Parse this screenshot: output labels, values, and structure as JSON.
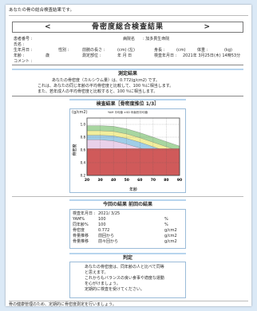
{
  "intro": "あなたの骨の総合検査結果です。",
  "title": "骨密度総合検査結果",
  "title_prev_arrow": "<",
  "title_next_arrow": ">",
  "patient": {
    "id_label": "患者番号 :",
    "name_label": "氏名 :",
    "birth_label": "生年月日 :",
    "age_label": "年齢 :",
    "age_value": "歳",
    "comment_label": "コメント :",
    "facility_label": "病院名",
    "facility_value": ": 加多貫生命院",
    "sex_label": "性別 :",
    "forearm_label": "前腕の長さ :",
    "forearm_unit": "(cm) (左)",
    "height_label": "身長 :",
    "height_unit": "(cm)",
    "weight_label": "体重 :",
    "weight_unit": "(kg)",
    "exam_label": "検査年月日 :",
    "exam_value": "2021年 3月25日(木) 14時53分",
    "meas_label": "測定部位 :",
    "meas_value": "年  月  日"
  },
  "measure": {
    "heading": "測定結果",
    "line1": "あなたの骨密度（カルシウム量）は、0.772(g/cm2) です。",
    "line2": "これは、あなたの同じ年齢の平均骨密度と比較して、100 ％に相当します。",
    "line3": "また、若年成人の平均骨密度と比較すると、100 ％に相当します。"
  },
  "graph": {
    "heading": "検査結果［骨密度推位 1/3］",
    "ylabel": "(g/cm2)",
    "legend": "YAM  平均値  ±SD  年齢別平均値",
    "yaxis_title": "骨密度",
    "xlabel": "年齢",
    "y_ticks": [
      "1.0",
      "0.8",
      "0.6",
      "0.4",
      "0.2"
    ],
    "x_ticks": [
      "20",
      "30",
      "40",
      "50",
      "60",
      "70",
      "80",
      "90"
    ]
  },
  "chart_data": {
    "type": "area",
    "xlim": [
      20,
      90
    ],
    "ylim": [
      0.2,
      1.1
    ],
    "x": [
      20,
      30,
      40,
      50,
      60,
      70,
      80,
      90
    ],
    "bands": [
      {
        "color": "#a8d6a0",
        "values": [
          0.98,
          0.98,
          0.97,
          0.93,
          0.87,
          0.8,
          0.73,
          0.66
        ]
      },
      {
        "color": "#f2ee9c",
        "values": [
          0.9,
          0.9,
          0.89,
          0.85,
          0.79,
          0.72,
          0.65,
          0.58
        ]
      },
      {
        "color": "#9fcde8",
        "values": [
          0.83,
          0.83,
          0.82,
          0.78,
          0.72,
          0.65,
          0.58,
          0.51
        ]
      },
      {
        "color": "#e9d1ea",
        "values": [
          0.76,
          0.76,
          0.74,
          0.69,
          0.63,
          0.56,
          0.5,
          0.44
        ]
      },
      {
        "color": "#d05a5a",
        "values": [
          0.62,
          0.62,
          0.62,
          0.62,
          0.62,
          0.62,
          0.62,
          0.62
        ]
      }
    ],
    "grid": true
  },
  "compare": {
    "heading": "今回の結果  前回の結果",
    "date_label": "検査年月日 :",
    "date_value": "2021/ 3/25",
    "rows": [
      {
        "label": "YAM%",
        "value": "100",
        "unit": "%"
      },
      {
        "label": "同年齢%",
        "value": "100",
        "unit": "%"
      },
      {
        "label": "骨密度",
        "value": "0.772",
        "unit": "g/cm2"
      },
      {
        "label": "骨量推移",
        "value": "前回から",
        "unit": "g/cm2"
      },
      {
        "label": "骨量推移",
        "value": "前々回から",
        "unit": "g/cm2"
      }
    ]
  },
  "judgement": {
    "heading": "判定",
    "line1": "あなたの骨密度は、同年齢の人と比べて同等",
    "line2": "と思えます。",
    "line3": "これからもバランスの良い食事や適度な運動",
    "line4": "を心がけましょう。",
    "line5": "定期的に検査を受けてください。"
  },
  "footer": "骨の健康管理のため、定期的に骨密度測定を行いましょう。"
}
